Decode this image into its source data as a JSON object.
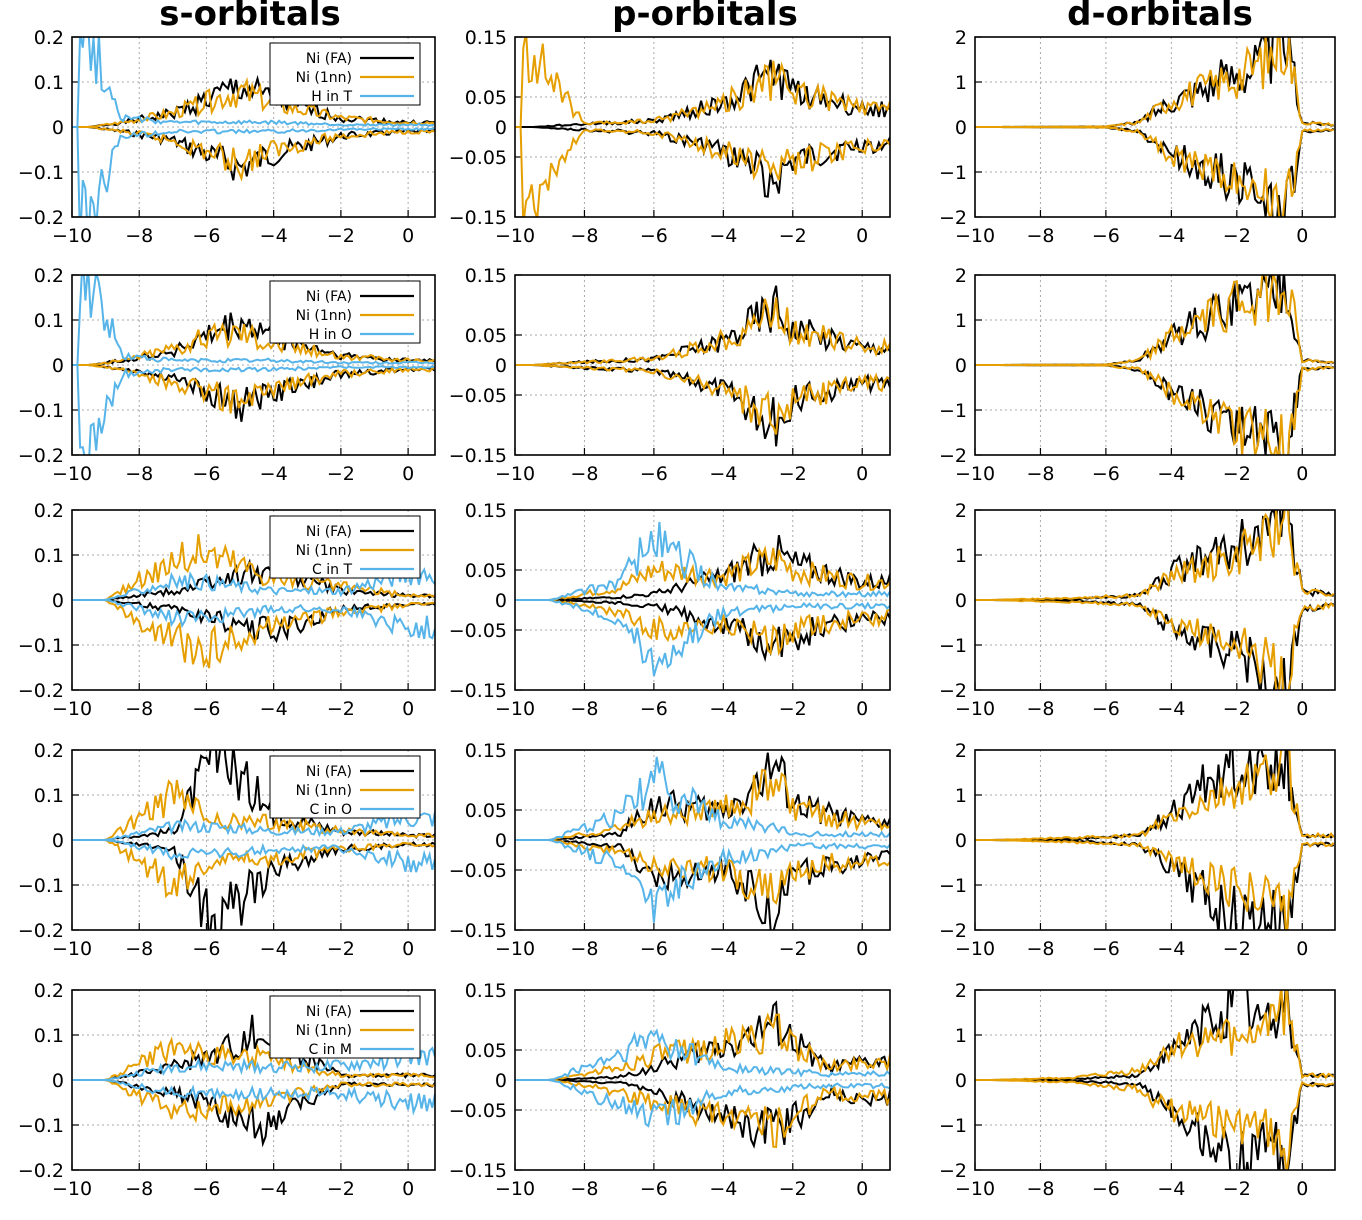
{
  "column_titles": [
    "s-orbitals",
    "p-orbitals",
    "d-orbitals"
  ],
  "colors": {
    "Ni (FA)": "#000000",
    "Ni (1nn)": "#E69F00",
    "site": "#56B4E9"
  },
  "chart_data": [
    {
      "type": "line",
      "row": 1,
      "col": 1,
      "title": "s-orbitals",
      "xlim": [
        -10,
        0.8
      ],
      "ylim": [
        -0.2,
        0.2
      ],
      "xticks": [
        "−10",
        "−8",
        "−6",
        "−4",
        "−2",
        "0"
      ],
      "yticks": [
        "0.2",
        "0.1",
        "0",
        "−0.1",
        "−0.2"
      ],
      "grid": true,
      "legend_position": "top-right",
      "series": [
        {
          "name": "Ni (FA)"
        },
        {
          "name": "Ni (1nn)"
        },
        {
          "name": "H in T"
        }
      ],
      "x": [
        -9.5,
        -8.5,
        -7,
        -5,
        -4,
        -2,
        0
      ],
      "series_values": {
        "Ni (FA) +": [
          0,
          0.01,
          0.03,
          0.09,
          0.06,
          0.02,
          0.01
        ],
        "Ni (1nn) +": [
          0,
          0.01,
          0.03,
          0.08,
          0.05,
          0.02,
          0.01
        ],
        "H in T +": [
          0.2,
          0.02,
          0.01,
          0.01,
          0.01,
          0.005,
          0.005
        ]
      }
    },
    {
      "type": "line",
      "row": 1,
      "col": 2,
      "xlim": [
        -10,
        0.8
      ],
      "ylim": [
        -0.15,
        0.15
      ],
      "xticks": [
        "−10",
        "−8",
        "−6",
        "−4",
        "−2",
        "0"
      ],
      "yticks": [
        "0.15",
        "0.05",
        "0",
        "−0.05",
        "−0.15"
      ],
      "grid": true,
      "series": [
        {
          "name": "Ni (FA)"
        },
        {
          "name": "Ni (1nn)"
        }
      ],
      "x": [
        -9.5,
        -8,
        -6,
        -4,
        -2.5,
        -2,
        0
      ],
      "series_values": {
        "Ni (FA) +": [
          0,
          0.005,
          0.01,
          0.04,
          0.09,
          0.06,
          0.03
        ],
        "Ni (1nn) +": [
          0.12,
          0.005,
          0.01,
          0.04,
          0.08,
          0.06,
          0.03
        ]
      }
    },
    {
      "type": "line",
      "row": 1,
      "col": 3,
      "title": "d-orbitals",
      "xlim": [
        -10,
        1
      ],
      "ylim": [
        -2,
        2
      ],
      "xticks": [
        "−10",
        "−8",
        "−6",
        "−4",
        "−2",
        "0"
      ],
      "yticks": [
        "2",
        "1",
        "0",
        "−1",
        "−2"
      ],
      "grid": true,
      "series": [
        {
          "name": "Ni (FA)"
        },
        {
          "name": "Ni (1nn)"
        }
      ],
      "x": [
        -9.5,
        -6,
        -5,
        -4,
        -2,
        -1,
        -0.5,
        0,
        1
      ],
      "series_values": {
        "Ni (FA) +": [
          0,
          0.01,
          0.1,
          0.6,
          1.2,
          1.6,
          2,
          0.1,
          0.05
        ],
        "Ni (1nn) +": [
          0,
          0.01,
          0.1,
          0.6,
          1.1,
          1.5,
          2,
          0.1,
          0.05
        ]
      }
    },
    {
      "type": "line",
      "row": 2,
      "col": 1,
      "xlim": [
        -10,
        0.8
      ],
      "ylim": [
        -0.2,
        0.2
      ],
      "xticks": [
        "−10",
        "−8",
        "−6",
        "−4",
        "−2",
        "0"
      ],
      "yticks": [
        "0.2",
        "0.1",
        "0",
        "−0.1",
        "−0.2"
      ],
      "grid": true,
      "legend_position": "top-right",
      "series": [
        {
          "name": "Ni (FA)"
        },
        {
          "name": "Ni (1nn)"
        },
        {
          "name": "H in O"
        }
      ],
      "x": [
        -9.5,
        -8.5,
        -7,
        -5,
        -4,
        -2,
        0
      ],
      "series_values": {
        "Ni (FA) +": [
          0,
          0.01,
          0.03,
          0.09,
          0.06,
          0.02,
          0.01
        ],
        "Ni (1nn) +": [
          0,
          0.01,
          0.04,
          0.08,
          0.05,
          0.02,
          0.01
        ],
        "H in O +": [
          0.2,
          0.02,
          0.01,
          0.01,
          0.01,
          0.005,
          0.005
        ]
      }
    },
    {
      "type": "line",
      "row": 2,
      "col": 2,
      "xlim": [
        -10,
        0.8
      ],
      "ylim": [
        -0.15,
        0.15
      ],
      "xticks": [
        "−10",
        "−8",
        "−6",
        "−4",
        "−2",
        "0"
      ],
      "yticks": [
        "0.15",
        "0.05",
        "0",
        "−0.05",
        "−0.15"
      ],
      "grid": true,
      "series": [
        {
          "name": "Ni (FA)"
        },
        {
          "name": "Ni (1nn)"
        }
      ],
      "x": [
        -9.5,
        -8,
        -6,
        -4,
        -2.5,
        -2,
        0
      ],
      "series_values": {
        "Ni (FA) +": [
          0,
          0.005,
          0.01,
          0.04,
          0.1,
          0.06,
          0.03
        ],
        "Ni (1nn) +": [
          0,
          0.005,
          0.01,
          0.04,
          0.09,
          0.06,
          0.03
        ]
      }
    },
    {
      "type": "line",
      "row": 2,
      "col": 3,
      "xlim": [
        -10,
        1
      ],
      "ylim": [
        -2,
        2
      ],
      "xticks": [
        "−10",
        "−8",
        "−6",
        "−4",
        "−2",
        "0"
      ],
      "yticks": [
        "2",
        "1",
        "0",
        "−1",
        "−2"
      ],
      "grid": true,
      "series": [
        {
          "name": "Ni (FA)"
        },
        {
          "name": "Ni (1nn)"
        }
      ],
      "x": [
        -9.5,
        -6,
        -5,
        -4,
        -2,
        -1,
        -0.5,
        0,
        1
      ],
      "series_values": {
        "Ni (FA) +": [
          0,
          0.01,
          0.1,
          0.6,
          1.4,
          1.6,
          2,
          0.1,
          0.05
        ],
        "Ni (1nn) +": [
          0,
          0.01,
          0.1,
          0.6,
          1.4,
          1.6,
          2,
          0.1,
          0.05
        ]
      }
    },
    {
      "type": "line",
      "row": 3,
      "col": 1,
      "xlim": [
        -10,
        0.8
      ],
      "ylim": [
        -0.2,
        0.2
      ],
      "xticks": [
        "−10",
        "−8",
        "−6",
        "−4",
        "−2",
        "0"
      ],
      "yticks": [
        "0.2",
        "0.1",
        "0",
        "−0.1",
        "−0.2"
      ],
      "grid": true,
      "legend_position": "top-right",
      "series": [
        {
          "name": "Ni (FA)"
        },
        {
          "name": "Ni (1nn)"
        },
        {
          "name": "C in T"
        }
      ],
      "x": [
        -9,
        -7,
        -6,
        -4,
        -2,
        0
      ],
      "series_values": {
        "Ni (FA) +": [
          0,
          0.02,
          0.04,
          0.07,
          0.02,
          0.01
        ],
        "Ni (1nn) +": [
          0,
          0.09,
          0.11,
          0.05,
          0.03,
          0.01
        ],
        "C in T +": [
          0,
          0.04,
          0.04,
          0.02,
          0.02,
          0.06
        ]
      }
    },
    {
      "type": "line",
      "row": 3,
      "col": 2,
      "xlim": [
        -10,
        0.8
      ],
      "ylim": [
        -0.15,
        0.15
      ],
      "xticks": [
        "−10",
        "−8",
        "−6",
        "−4",
        "−2",
        "0"
      ],
      "yticks": [
        "0.15",
        "0.05",
        "0",
        "−0.05",
        "−0.15"
      ],
      "grid": true,
      "series": [
        {
          "name": "Ni (FA)"
        },
        {
          "name": "Ni (1nn)"
        },
        {
          "name": "C in T"
        }
      ],
      "x": [
        -9,
        -7,
        -6,
        -4,
        -2.5,
        -2,
        0
      ],
      "series_values": {
        "Ni (FA) +": [
          0,
          0.005,
          0.01,
          0.04,
          0.08,
          0.06,
          0.03
        ],
        "Ni (1nn) +": [
          0,
          0.02,
          0.05,
          0.04,
          0.07,
          0.05,
          0.03
        ],
        "C in T +": [
          0,
          0.03,
          0.1,
          0.02,
          0.015,
          0.01,
          0.01
        ]
      }
    },
    {
      "type": "line",
      "row": 3,
      "col": 3,
      "xlim": [
        -10,
        1
      ],
      "ylim": [
        -2,
        2
      ],
      "xticks": [
        "−10",
        "−8",
        "−6",
        "−4",
        "−2",
        "0"
      ],
      "yticks": [
        "2",
        "1",
        "0",
        "−1",
        "−2"
      ],
      "grid": true,
      "series": [
        {
          "name": "Ni (FA)"
        },
        {
          "name": "Ni (1nn)"
        }
      ],
      "x": [
        -9.5,
        -7,
        -5,
        -4,
        -2,
        -1,
        -0.5,
        0,
        1
      ],
      "series_values": {
        "Ni (FA) +": [
          0,
          0.02,
          0.1,
          0.6,
          1.2,
          1.6,
          1.9,
          0.2,
          0.1
        ],
        "Ni (1nn) +": [
          0,
          0.05,
          0.1,
          0.5,
          1,
          1.4,
          1.8,
          0.2,
          0.1
        ]
      }
    },
    {
      "type": "line",
      "row": 4,
      "col": 1,
      "xlim": [
        -10,
        0.8
      ],
      "ylim": [
        -0.2,
        0.2
      ],
      "xticks": [
        "−10",
        "−8",
        "−6",
        "−4",
        "−2",
        "0"
      ],
      "yticks": [
        "0.2",
        "0.1",
        "0",
        "−0.1",
        "−0.2"
      ],
      "grid": true,
      "legend_position": "top-right",
      "series": [
        {
          "name": "Ni (FA)"
        },
        {
          "name": "Ni (1nn)"
        },
        {
          "name": "C in O"
        }
      ],
      "x": [
        -9,
        -7,
        -5.7,
        -4,
        -2,
        0
      ],
      "series_values": {
        "Ni (FA) +": [
          0,
          0.02,
          0.2,
          0.06,
          0.02,
          0.01
        ],
        "Ni (1nn) +": [
          0,
          0.1,
          0.04,
          0.04,
          0.02,
          0.01
        ],
        "C in O +": [
          0,
          0.03,
          0.03,
          0.02,
          0.02,
          0.05
        ]
      }
    },
    {
      "type": "line",
      "row": 4,
      "col": 2,
      "xlim": [
        -10,
        0.8
      ],
      "ylim": [
        -0.15,
        0.15
      ],
      "xticks": [
        "−10",
        "−8",
        "−6",
        "−4",
        "−2",
        "0"
      ],
      "yticks": [
        "0.15",
        "0.05",
        "0",
        "−0.05",
        "−0.15"
      ],
      "grid": true,
      "series": [
        {
          "name": "Ni (FA)"
        },
        {
          "name": "Ni (1nn)"
        },
        {
          "name": "C in O"
        }
      ],
      "x": [
        -9,
        -7,
        -6,
        -4,
        -2.5,
        -2,
        0
      ],
      "series_values": {
        "Ni (FA) +": [
          0,
          0.01,
          0.06,
          0.05,
          0.12,
          0.06,
          0.03
        ],
        "Ni (1nn) +": [
          0,
          0.02,
          0.04,
          0.05,
          0.1,
          0.05,
          0.03
        ],
        "C in O +": [
          0,
          0.04,
          0.1,
          0.03,
          0.02,
          0.01,
          0.01
        ]
      }
    },
    {
      "type": "line",
      "row": 4,
      "col": 3,
      "xlim": [
        -10,
        1
      ],
      "ylim": [
        -2,
        2
      ],
      "xticks": [
        "−10",
        "−8",
        "−6",
        "−4",
        "−2",
        "0"
      ],
      "yticks": [
        "2",
        "1",
        "0",
        "−1",
        "−2"
      ],
      "grid": true,
      "series": [
        {
          "name": "Ni (FA)"
        },
        {
          "name": "Ni (1nn)"
        }
      ],
      "x": [
        -9.5,
        -7,
        -5,
        -4,
        -2,
        -1,
        -0.5,
        0,
        1
      ],
      "series_values": {
        "Ni (FA) +": [
          0,
          0.02,
          0.1,
          0.6,
          1.8,
          1.6,
          1.9,
          0.1,
          0.1
        ],
        "Ni (1nn) +": [
          0,
          0.05,
          0.1,
          0.5,
          1.1,
          1.4,
          1.9,
          0.1,
          0.1
        ]
      }
    },
    {
      "type": "line",
      "row": 5,
      "col": 1,
      "xlim": [
        -10,
        0.8
      ],
      "ylim": [
        -0.2,
        0.2
      ],
      "xticks": [
        "−10",
        "−8",
        "−6",
        "−4",
        "−2",
        "0"
      ],
      "yticks": [
        "0.2",
        "0.1",
        "0",
        "−0.1",
        "−0.2"
      ],
      "grid": true,
      "legend_position": "top-right",
      "series": [
        {
          "name": "Ni (FA)"
        },
        {
          "name": "Ni (1nn)"
        },
        {
          "name": "C in M"
        }
      ],
      "x": [
        -9,
        -7,
        -6,
        -4.5,
        -2,
        0
      ],
      "series_values": {
        "Ni (FA) +": [
          0,
          0.03,
          0.05,
          0.11,
          0.01,
          0.01
        ],
        "Ni (1nn) +": [
          0,
          0.07,
          0.06,
          0.05,
          0.01,
          0.01
        ],
        "C in M +": [
          0,
          0.03,
          0.03,
          0.03,
          0.03,
          0.05
        ]
      }
    },
    {
      "type": "line",
      "row": 5,
      "col": 2,
      "xlim": [
        -10,
        0.8
      ],
      "ylim": [
        -0.15,
        0.15
      ],
      "xticks": [
        "−10",
        "−8",
        "−6",
        "−4",
        "−2",
        "0"
      ],
      "yticks": [
        "0.15",
        "0.05",
        "0",
        "−0.05",
        "−0.15"
      ],
      "grid": true,
      "series": [
        {
          "name": "Ni (FA)"
        },
        {
          "name": "Ni (1nn)"
        },
        {
          "name": "C in M"
        }
      ],
      "x": [
        -9,
        -7,
        -6,
        -4,
        -2.5,
        -1,
        0
      ],
      "series_values": {
        "Ni (FA) +": [
          0,
          0.005,
          0.02,
          0.06,
          0.09,
          0.02,
          0.03
        ],
        "Ni (1nn) +": [
          0,
          0.02,
          0.04,
          0.06,
          0.08,
          0.02,
          0.03
        ],
        "C in M +": [
          0,
          0.04,
          0.07,
          0.02,
          0.015,
          0.01,
          0.01
        ]
      }
    },
    {
      "type": "line",
      "row": 5,
      "col": 3,
      "xlim": [
        -10,
        1
      ],
      "ylim": [
        -2,
        2
      ],
      "xticks": [
        "−10",
        "−8",
        "−6",
        "−4",
        "−2",
        "0"
      ],
      "yticks": [
        "2",
        "1",
        "0",
        "−1",
        "−2"
      ],
      "grid": true,
      "series": [
        {
          "name": "Ni (FA)"
        },
        {
          "name": "Ni (1nn)"
        }
      ],
      "x": [
        -9.5,
        -7,
        -5,
        -4,
        -2,
        -1,
        -0.5,
        0,
        1
      ],
      "series_values": {
        "Ni (FA) +": [
          0,
          0.02,
          0.1,
          0.6,
          1.9,
          1.2,
          1.9,
          0.1,
          0.1
        ],
        "Ni (1nn) +": [
          0,
          0.05,
          0.2,
          0.7,
          1,
          1.1,
          1.8,
          0.1,
          0.1
        ]
      }
    }
  ]
}
